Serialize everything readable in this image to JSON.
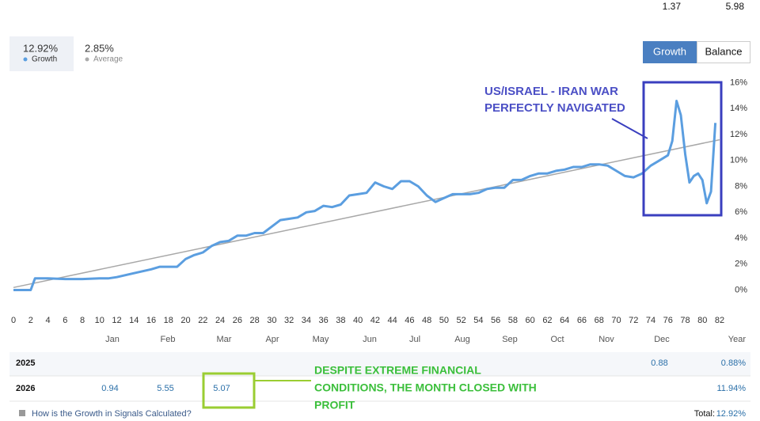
{
  "header": {
    "values": [
      "1.37",
      "5.98"
    ]
  },
  "stats": [
    {
      "value": "12.92%",
      "label": "Growth"
    },
    {
      "value": "2.85%",
      "label": "Average"
    }
  ],
  "buttons": [
    "Growth",
    "Balance"
  ],
  "chart_data": {
    "type": "line",
    "xlim": [
      0,
      82
    ],
    "ylim": [
      -1.8,
      16.4
    ],
    "xticks": [
      0,
      2,
      4,
      6,
      8,
      10,
      12,
      14,
      16,
      18,
      20,
      22,
      24,
      26,
      28,
      30,
      32,
      34,
      36,
      38,
      40,
      42,
      44,
      46,
      48,
      50,
      52,
      54,
      56,
      58,
      60,
      62,
      64,
      66,
      68,
      70,
      72,
      74,
      76,
      78,
      80,
      82
    ],
    "yticks": [
      {
        "value": 0,
        "label": "0%"
      },
      {
        "value": 2,
        "label": "2%"
      },
      {
        "value": 4,
        "label": "4%"
      },
      {
        "value": 6,
        "label": "6%"
      },
      {
        "value": 8,
        "label": "8%"
      },
      {
        "value": 10,
        "label": "10%"
      },
      {
        "value": 12,
        "label": "12%"
      },
      {
        "value": 14,
        "label": "14%"
      },
      {
        "value": 16,
        "label": "16%"
      }
    ],
    "grid": false,
    "series": [
      {
        "name": "Average",
        "color": "#a8a8a8",
        "x": [
          0,
          82
        ],
        "values": [
          0.2,
          11.6
        ]
      },
      {
        "name": "Growth",
        "color": "#5b9ee0",
        "x": [
          0,
          2,
          2.5,
          4,
          6,
          8,
          10,
          11,
          12,
          14,
          16,
          17,
          18,
          19,
          20,
          21,
          22,
          23,
          24,
          25,
          26,
          27,
          28,
          29,
          30,
          31,
          32,
          33,
          34,
          35,
          36,
          37,
          38,
          39,
          40,
          41,
          42,
          43,
          44,
          45,
          46,
          47,
          48,
          49,
          50,
          51,
          52,
          53,
          54,
          55,
          56,
          57,
          58,
          59,
          60,
          61,
          62,
          63,
          64,
          65,
          66,
          67,
          68,
          69,
          70,
          71,
          72,
          73,
          74,
          75,
          76,
          76.5,
          77,
          77.5,
          78,
          78.5,
          79,
          79.5,
          80,
          80.5,
          81,
          81.5
        ],
        "values": [
          0,
          0,
          0.9,
          0.9,
          0.85,
          0.85,
          0.9,
          0.9,
          1.0,
          1.3,
          1.6,
          1.8,
          1.8,
          1.8,
          2.4,
          2.7,
          2.9,
          3.4,
          3.7,
          3.8,
          4.2,
          4.2,
          4.4,
          4.4,
          4.9,
          5.4,
          5.5,
          5.6,
          6.0,
          6.1,
          6.5,
          6.4,
          6.6,
          7.3,
          7.4,
          7.5,
          8.3,
          8.0,
          7.8,
          8.4,
          8.4,
          8.0,
          7.3,
          6.8,
          7.1,
          7.4,
          7.4,
          7.4,
          7.5,
          7.8,
          7.9,
          7.9,
          8.5,
          8.5,
          8.8,
          9.0,
          9.0,
          9.2,
          9.3,
          9.5,
          9.5,
          9.7,
          9.7,
          9.6,
          9.2,
          8.8,
          8.7,
          9.0,
          9.6,
          10.0,
          10.4,
          11.5,
          14.6,
          13.5,
          10.5,
          8.3,
          8.8,
          9.0,
          8.5,
          6.7,
          7.6,
          12.9
        ]
      }
    ],
    "annotations": [
      {
        "lines": [
          "US/ISRAEL - IRAN WAR",
          "PERFECTLY NAVIGATED"
        ]
      }
    ]
  },
  "table": {
    "columns": [
      "Jan",
      "Feb",
      "Mar",
      "Apr",
      "May",
      "Jun",
      "Jul",
      "Aug",
      "Sep",
      "Oct",
      "Nov",
      "Dec",
      "Year"
    ],
    "rows": [
      {
        "year": "2025",
        "cells": [
          null,
          null,
          null,
          null,
          null,
          null,
          null,
          null,
          null,
          null,
          null,
          "0.88",
          "0.88%"
        ]
      },
      {
        "year": "2026",
        "cells": [
          "0.94",
          "5.55",
          "5.07",
          null,
          null,
          null,
          null,
          null,
          null,
          null,
          null,
          null,
          "11.94%"
        ]
      }
    ]
  },
  "table_note": {
    "lines": [
      "DESPITE EXTREME FINANCIAL",
      "CONDITIONS, THE MONTH CLOSED WITH",
      "PROFIT"
    ]
  },
  "footer": {
    "link": "How is the Growth in Signals Calculated?",
    "total_label": "Total:",
    "total_value": "12.92%"
  }
}
